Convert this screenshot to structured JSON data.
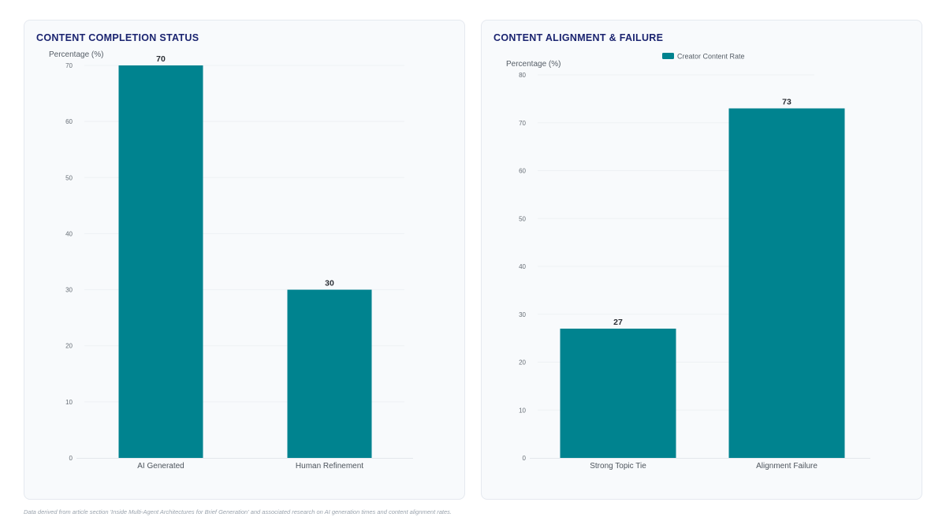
{
  "footnote": "Data derived from article section 'Inside Multi-Agent Architectures for Brief Generation' and associated research on AI generation times and content alignment rates.",
  "colors": {
    "bar": "#00838f",
    "grid": "#eef1f4",
    "title": "#1b2470"
  },
  "chart_data": [
    {
      "type": "bar",
      "title": "CONTENT COMPLETION STATUS",
      "xlabel": "",
      "ylabel": "Percentage (%)",
      "categories": [
        "AI Generated",
        "Human Refinement"
      ],
      "values": [
        70,
        30
      ],
      "ylim": [
        0,
        70
      ],
      "yticks": [
        0,
        10,
        20,
        30,
        40,
        50,
        60,
        70
      ],
      "legend": null,
      "grid": true
    },
    {
      "type": "bar",
      "title": "CONTENT ALIGNMENT & FAILURE",
      "xlabel": "",
      "ylabel": "Percentage (%)",
      "categories": [
        "Strong Topic Tie",
        "Alignment Failure"
      ],
      "series": [
        {
          "name": "Creator Content Rate",
          "values": [
            27,
            73
          ]
        }
      ],
      "values": [
        27,
        73
      ],
      "ylim": [
        0,
        80
      ],
      "yticks": [
        0,
        10,
        20,
        30,
        40,
        50,
        60,
        70,
        80
      ],
      "legend": "top",
      "grid": true
    }
  ]
}
